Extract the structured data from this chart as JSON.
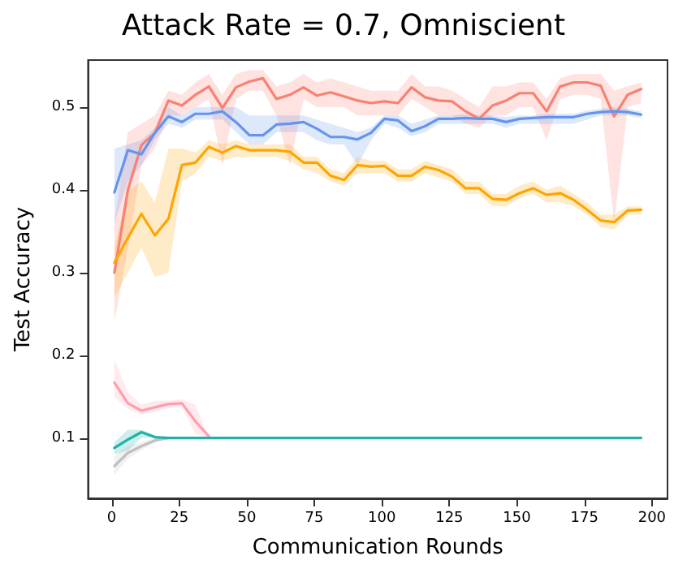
{
  "chart_data": {
    "type": "line",
    "title": "Attack Rate = 0.7, Omniscient",
    "xlabel": "Communication Rounds",
    "ylabel": "Test Accuracy",
    "x": [
      1,
      6,
      11,
      16,
      21,
      26,
      31,
      36,
      41,
      46,
      51,
      56,
      61,
      66,
      71,
      76,
      81,
      86,
      91,
      96,
      101,
      106,
      111,
      116,
      121,
      126,
      131,
      136,
      141,
      146,
      151,
      156,
      161,
      166,
      171,
      176,
      181,
      186,
      191,
      196
    ],
    "xlim": [
      -8.75,
      205.75
    ],
    "xticks": [
      0,
      25,
      50,
      75,
      100,
      125,
      150,
      175,
      200
    ],
    "ylim": [
      0.027,
      0.557
    ],
    "yticks": [
      0.1,
      0.2,
      0.3,
      0.4,
      0.5
    ],
    "grid": false,
    "marker": "none",
    "line_style": "solid",
    "series": [
      {
        "color": "#fa8072",
        "values": [
          0.3,
          0.4,
          0.454,
          0.469,
          0.508,
          0.502,
          0.515,
          0.525,
          0.499,
          0.524,
          0.531,
          0.535,
          0.51,
          0.515,
          0.524,
          0.514,
          0.518,
          0.513,
          0.508,
          0.505,
          0.507,
          0.505,
          0.524,
          0.512,
          0.508,
          0.507,
          0.495,
          0.486,
          0.502,
          0.508,
          0.517,
          0.517,
          0.495,
          0.525,
          0.53,
          0.53,
          0.526,
          0.489,
          0.515,
          0.522
        ],
        "lower": [
          0.24,
          0.33,
          0.43,
          0.45,
          0.49,
          0.49,
          0.5,
          0.51,
          0.43,
          0.51,
          0.52,
          0.52,
          0.49,
          0.43,
          0.51,
          0.5,
          0.5,
          0.5,
          0.49,
          0.49,
          0.49,
          0.49,
          0.51,
          0.5,
          0.49,
          0.49,
          0.48,
          0.475,
          0.49,
          0.49,
          0.5,
          0.5,
          0.46,
          0.51,
          0.515,
          0.515,
          0.51,
          0.36,
          0.5,
          0.505
        ],
        "upper": [
          0.36,
          0.47,
          0.48,
          0.49,
          0.52,
          0.515,
          0.53,
          0.54,
          0.515,
          0.54,
          0.545,
          0.545,
          0.525,
          0.53,
          0.54,
          0.53,
          0.535,
          0.53,
          0.525,
          0.52,
          0.52,
          0.52,
          0.54,
          0.525,
          0.525,
          0.52,
          0.51,
          0.5,
          0.525,
          0.525,
          0.53,
          0.53,
          0.51,
          0.535,
          0.54,
          0.54,
          0.54,
          0.52,
          0.525,
          0.53
        ]
      },
      {
        "color": "#6495ed",
        "values": [
          0.397,
          0.448,
          0.443,
          0.469,
          0.489,
          0.482,
          0.492,
          0.492,
          0.495,
          0.482,
          0.466,
          0.466,
          0.479,
          0.48,
          0.482,
          0.474,
          0.464,
          0.464,
          0.461,
          0.469,
          0.486,
          0.484,
          0.471,
          0.477,
          0.486,
          0.486,
          0.487,
          0.486,
          0.486,
          0.482,
          0.486,
          0.487,
          0.488,
          0.488,
          0.488,
          0.492,
          0.494,
          0.495,
          0.494,
          0.491
        ],
        "lower": [
          0.36,
          0.41,
          0.43,
          0.46,
          0.48,
          0.475,
          0.485,
          0.485,
          0.485,
          0.47,
          0.455,
          0.455,
          0.47,
          0.47,
          0.47,
          0.46,
          0.455,
          0.455,
          0.43,
          0.46,
          0.48,
          0.475,
          0.465,
          0.47,
          0.48,
          0.48,
          0.48,
          0.48,
          0.48,
          0.475,
          0.48,
          0.48,
          0.48,
          0.48,
          0.48,
          0.485,
          0.49,
          0.49,
          0.49,
          0.487
        ],
        "upper": [
          0.45,
          0.455,
          0.46,
          0.475,
          0.5,
          0.49,
          0.5,
          0.5,
          0.5,
          0.5,
          0.49,
          0.49,
          0.49,
          0.49,
          0.49,
          0.485,
          0.48,
          0.475,
          0.47,
          0.475,
          0.49,
          0.49,
          0.48,
          0.485,
          0.49,
          0.49,
          0.492,
          0.49,
          0.49,
          0.488,
          0.49,
          0.49,
          0.492,
          0.492,
          0.492,
          0.496,
          0.498,
          0.5,
          0.498,
          0.495
        ]
      },
      {
        "color": "#ffa500",
        "values": [
          0.312,
          0.342,
          0.371,
          0.345,
          0.365,
          0.43,
          0.433,
          0.452,
          0.445,
          0.453,
          0.448,
          0.448,
          0.448,
          0.446,
          0.433,
          0.433,
          0.417,
          0.412,
          0.43,
          0.428,
          0.429,
          0.417,
          0.417,
          0.428,
          0.424,
          0.416,
          0.402,
          0.402,
          0.389,
          0.388,
          0.396,
          0.402,
          0.394,
          0.396,
          0.388,
          0.376,
          0.363,
          0.361,
          0.375,
          0.376
        ],
        "lower": [
          0.27,
          0.3,
          0.33,
          0.295,
          0.3,
          0.41,
          0.42,
          0.44,
          0.435,
          0.44,
          0.44,
          0.44,
          0.44,
          0.435,
          0.425,
          0.42,
          0.41,
          0.405,
          0.42,
          0.42,
          0.42,
          0.41,
          0.41,
          0.42,
          0.415,
          0.41,
          0.395,
          0.395,
          0.38,
          0.38,
          0.39,
          0.395,
          0.385,
          0.385,
          0.38,
          0.37,
          0.355,
          0.352,
          0.37,
          0.37
        ],
        "upper": [
          0.33,
          0.4,
          0.41,
          0.385,
          0.45,
          0.45,
          0.445,
          0.46,
          0.455,
          0.46,
          0.455,
          0.455,
          0.455,
          0.455,
          0.44,
          0.44,
          0.425,
          0.42,
          0.44,
          0.435,
          0.435,
          0.425,
          0.425,
          0.435,
          0.43,
          0.425,
          0.41,
          0.41,
          0.395,
          0.395,
          0.405,
          0.41,
          0.4,
          0.405,
          0.395,
          0.385,
          0.37,
          0.37,
          0.38,
          0.38
        ]
      },
      {
        "color": "#ff9eb0",
        "x": [
          1,
          6,
          11,
          16,
          21,
          26,
          31,
          36
        ],
        "values": [
          0.167,
          0.142,
          0.133,
          0.137,
          0.141,
          0.142,
          0.12,
          0.102
        ],
        "lower": [
          0.15,
          0.135,
          0.128,
          0.132,
          0.136,
          0.138,
          0.105,
          0.1
        ],
        "upper": [
          0.195,
          0.155,
          0.14,
          0.145,
          0.145,
          0.147,
          0.14,
          0.1
        ]
      },
      {
        "color": "#c0c0c0",
        "x": [
          1,
          6,
          11,
          16,
          21
        ],
        "values": [
          0.066,
          0.082,
          0.09,
          0.097,
          0.1
        ],
        "lower": [
          0.055,
          0.075,
          0.085,
          0.095,
          0.1
        ],
        "upper": [
          0.078,
          0.09,
          0.095,
          0.1,
          0.1
        ]
      },
      {
        "color": "#20b2aa",
        "values": [
          0.088,
          0.098,
          0.107,
          0.101,
          0.1,
          0.1,
          0.1,
          0.1,
          0.1,
          0.1,
          0.1,
          0.1,
          0.1,
          0.1,
          0.1,
          0.1,
          0.1,
          0.1,
          0.1,
          0.1,
          0.1,
          0.1,
          0.1,
          0.1,
          0.1,
          0.1,
          0.1,
          0.1,
          0.1,
          0.1,
          0.1,
          0.1,
          0.1,
          0.1,
          0.1,
          0.1,
          0.1,
          0.1,
          0.1,
          0.1
        ],
        "lower": [
          0.08,
          0.085,
          0.1,
          0.1,
          0.1,
          0.1,
          0.1,
          0.1,
          0.1,
          0.1,
          0.1,
          0.1,
          0.1,
          0.1,
          0.1,
          0.1,
          0.1,
          0.1,
          0.1,
          0.1,
          0.1,
          0.1,
          0.1,
          0.1,
          0.1,
          0.1,
          0.1,
          0.1,
          0.1,
          0.1,
          0.1,
          0.1,
          0.1,
          0.1,
          0.1,
          0.1,
          0.1,
          0.1,
          0.1,
          0.1
        ],
        "upper": [
          0.095,
          0.11,
          0.11,
          0.103,
          0.1,
          0.1,
          0.1,
          0.1,
          0.1,
          0.1,
          0.1,
          0.1,
          0.1,
          0.1,
          0.1,
          0.1,
          0.1,
          0.1,
          0.1,
          0.1,
          0.1,
          0.1,
          0.1,
          0.1,
          0.1,
          0.1,
          0.1,
          0.1,
          0.1,
          0.1,
          0.1,
          0.1,
          0.1,
          0.1,
          0.1,
          0.1,
          0.1,
          0.1,
          0.1,
          0.1
        ]
      }
    ]
  }
}
